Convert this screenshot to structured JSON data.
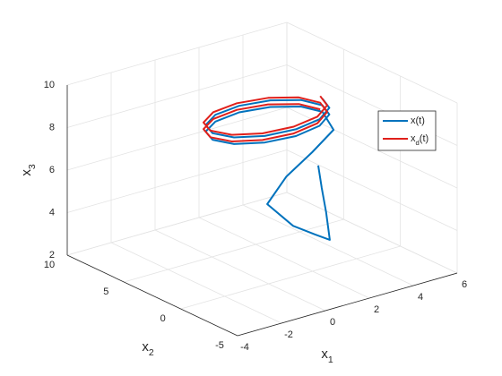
{
  "chart_data": {
    "type": "line3d",
    "xlabel": "x_1",
    "ylabel": "x_2",
    "zlabel": "x_3",
    "xlim": [
      -4,
      6
    ],
    "xticks": [
      -4,
      -2,
      0,
      2,
      4,
      6
    ],
    "ylim": [
      -5,
      10
    ],
    "yticks": [
      -5,
      0,
      5,
      10
    ],
    "zlim": [
      2,
      10
    ],
    "zticks": [
      2,
      4,
      6,
      8,
      10
    ],
    "grid": true,
    "legend": "northeast",
    "series": [
      {
        "name": "x(t)",
        "color": "#0072bd",
        "x": [
          1.74,
          1.9,
          2.1,
          2.27,
          1.6,
          0.6,
          -0.58,
          0.8,
          2.5,
          3.99,
          4.0,
          3.67,
          2.75,
          1.5,
          0.25,
          -0.67,
          -1.0,
          -0.67,
          0.25,
          1.5,
          2.75,
          3.67,
          4.0,
          3.67,
          2.75,
          1.5,
          0.25,
          -0.67,
          -1.0,
          -0.67,
          0.25,
          1.5,
          2.75,
          3.67,
          4.0
        ],
        "y": [
          -1,
          -1,
          -1,
          -1,
          -1,
          -1,
          -1,
          0,
          1,
          2,
          3,
          4.25,
          5.17,
          5.5,
          5.17,
          4.25,
          3,
          1.75,
          0.83,
          0.5,
          0.83,
          1.75,
          3,
          4.25,
          5.17,
          5.5,
          5.17,
          4.25,
          3,
          1.75,
          0.83,
          0.5,
          0.83,
          1.75,
          3
        ],
        "z": [
          7.3,
          6.2,
          5.0,
          3.65,
          4.1,
          4.8,
          6.17,
          6.8,
          7.2,
          7.56,
          8.15,
          8.18,
          8.2,
          8.23,
          8.25,
          8.28,
          8.31,
          8.33,
          8.36,
          8.38,
          8.41,
          8.44,
          8.46,
          8.49,
          8.51,
          8.54,
          8.57,
          8.59,
          8.62,
          8.64,
          8.67,
          8.7,
          8.72,
          8.75,
          8.77
        ]
      },
      {
        "name": "x_d(t)",
        "color": "#e0201b",
        "x": [
          3.9,
          3.57,
          2.65,
          1.4,
          0.15,
          -0.77,
          -1.1,
          -0.77,
          0.15,
          1.4,
          2.65,
          3.57,
          3.9,
          3.57,
          2.65,
          1.4,
          0.15,
          -0.77,
          -1.1,
          -0.77,
          0.15,
          1.4,
          2.65,
          3.57,
          3.9
        ],
        "y": [
          3,
          4.25,
          5.17,
          5.5,
          5.17,
          4.25,
          3,
          1.75,
          0.83,
          0.5,
          0.83,
          1.75,
          3,
          4.25,
          5.17,
          5.5,
          5.17,
          4.25,
          3,
          1.75,
          0.83,
          0.5,
          0.83,
          1.75,
          3
        ],
        "z": [
          8.3,
          8.33,
          8.35,
          8.38,
          8.4,
          8.43,
          8.46,
          8.48,
          8.51,
          8.53,
          8.56,
          8.59,
          8.61,
          8.64,
          8.66,
          8.69,
          8.72,
          8.74,
          8.77,
          8.79,
          8.82,
          8.85,
          8.87,
          8.9,
          8.92
        ]
      }
    ]
  }
}
